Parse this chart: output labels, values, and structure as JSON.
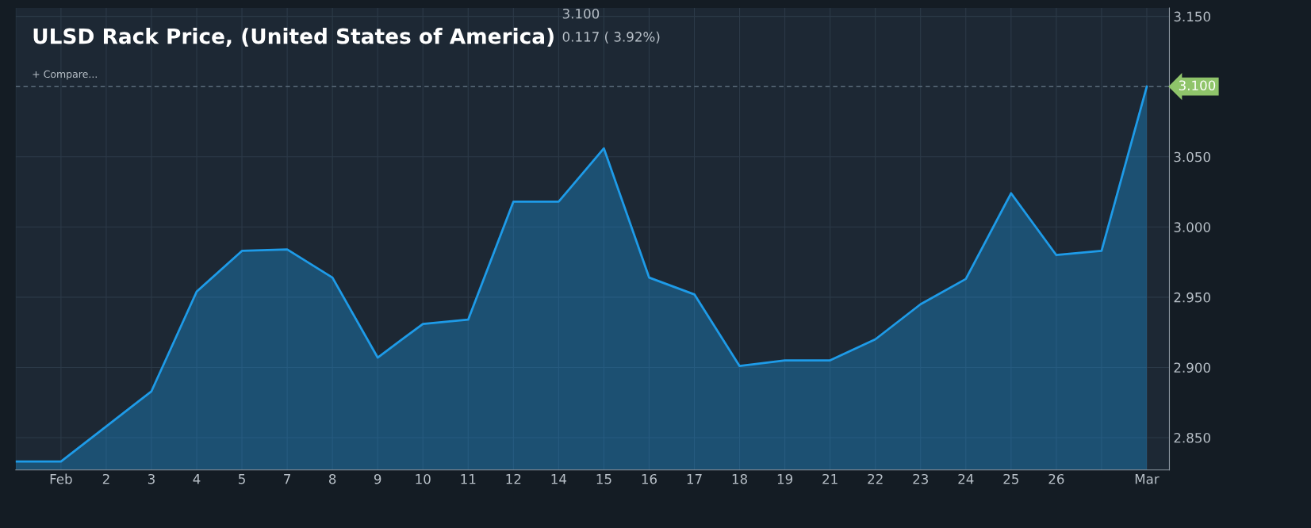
{
  "chart_data": {
    "type": "area",
    "title": "ULSD Rack Price, (United States of America)",
    "annotations": [
      "3.100",
      "0.117 ( 3.92%)",
      "+ Compare..."
    ],
    "categories": [
      null,
      "Feb",
      "2",
      "3",
      "4",
      "5",
      "7",
      "8",
      "9",
      "10",
      "11",
      "12",
      "14",
      "15",
      "16",
      "17",
      "18",
      "19",
      "21",
      "22",
      "23",
      "24",
      "25",
      "26",
      null,
      "Mar"
    ],
    "series": [
      {
        "color": "#1e9be8",
        "values": [
          2.833,
          2.833,
          2.858,
          2.883,
          2.954,
          2.983,
          2.984,
          2.964,
          2.907,
          2.931,
          2.934,
          3.018,
          3.018,
          3.056,
          2.964,
          2.952,
          2.901,
          2.905,
          2.905,
          2.92,
          2.945,
          2.963,
          3.024,
          2.98,
          2.983,
          3.1
        ]
      }
    ],
    "ylim": [
      2.827,
      3.156
    ],
    "yticks": [
      {
        "value": 2.85,
        "label": "2.850"
      },
      {
        "value": 2.9,
        "label": "2.900"
      },
      {
        "value": 2.95,
        "label": "2.950"
      },
      {
        "value": 3.0,
        "label": "3.000"
      },
      {
        "value": 3.05,
        "label": "3.050"
      },
      {
        "value": 3.15,
        "label": "3.150"
      }
    ],
    "ref_lines": [
      {
        "axis": "y",
        "value": 3.1,
        "label": "3.100",
        "line_style": "dashed"
      }
    ],
    "grid": true
  }
}
